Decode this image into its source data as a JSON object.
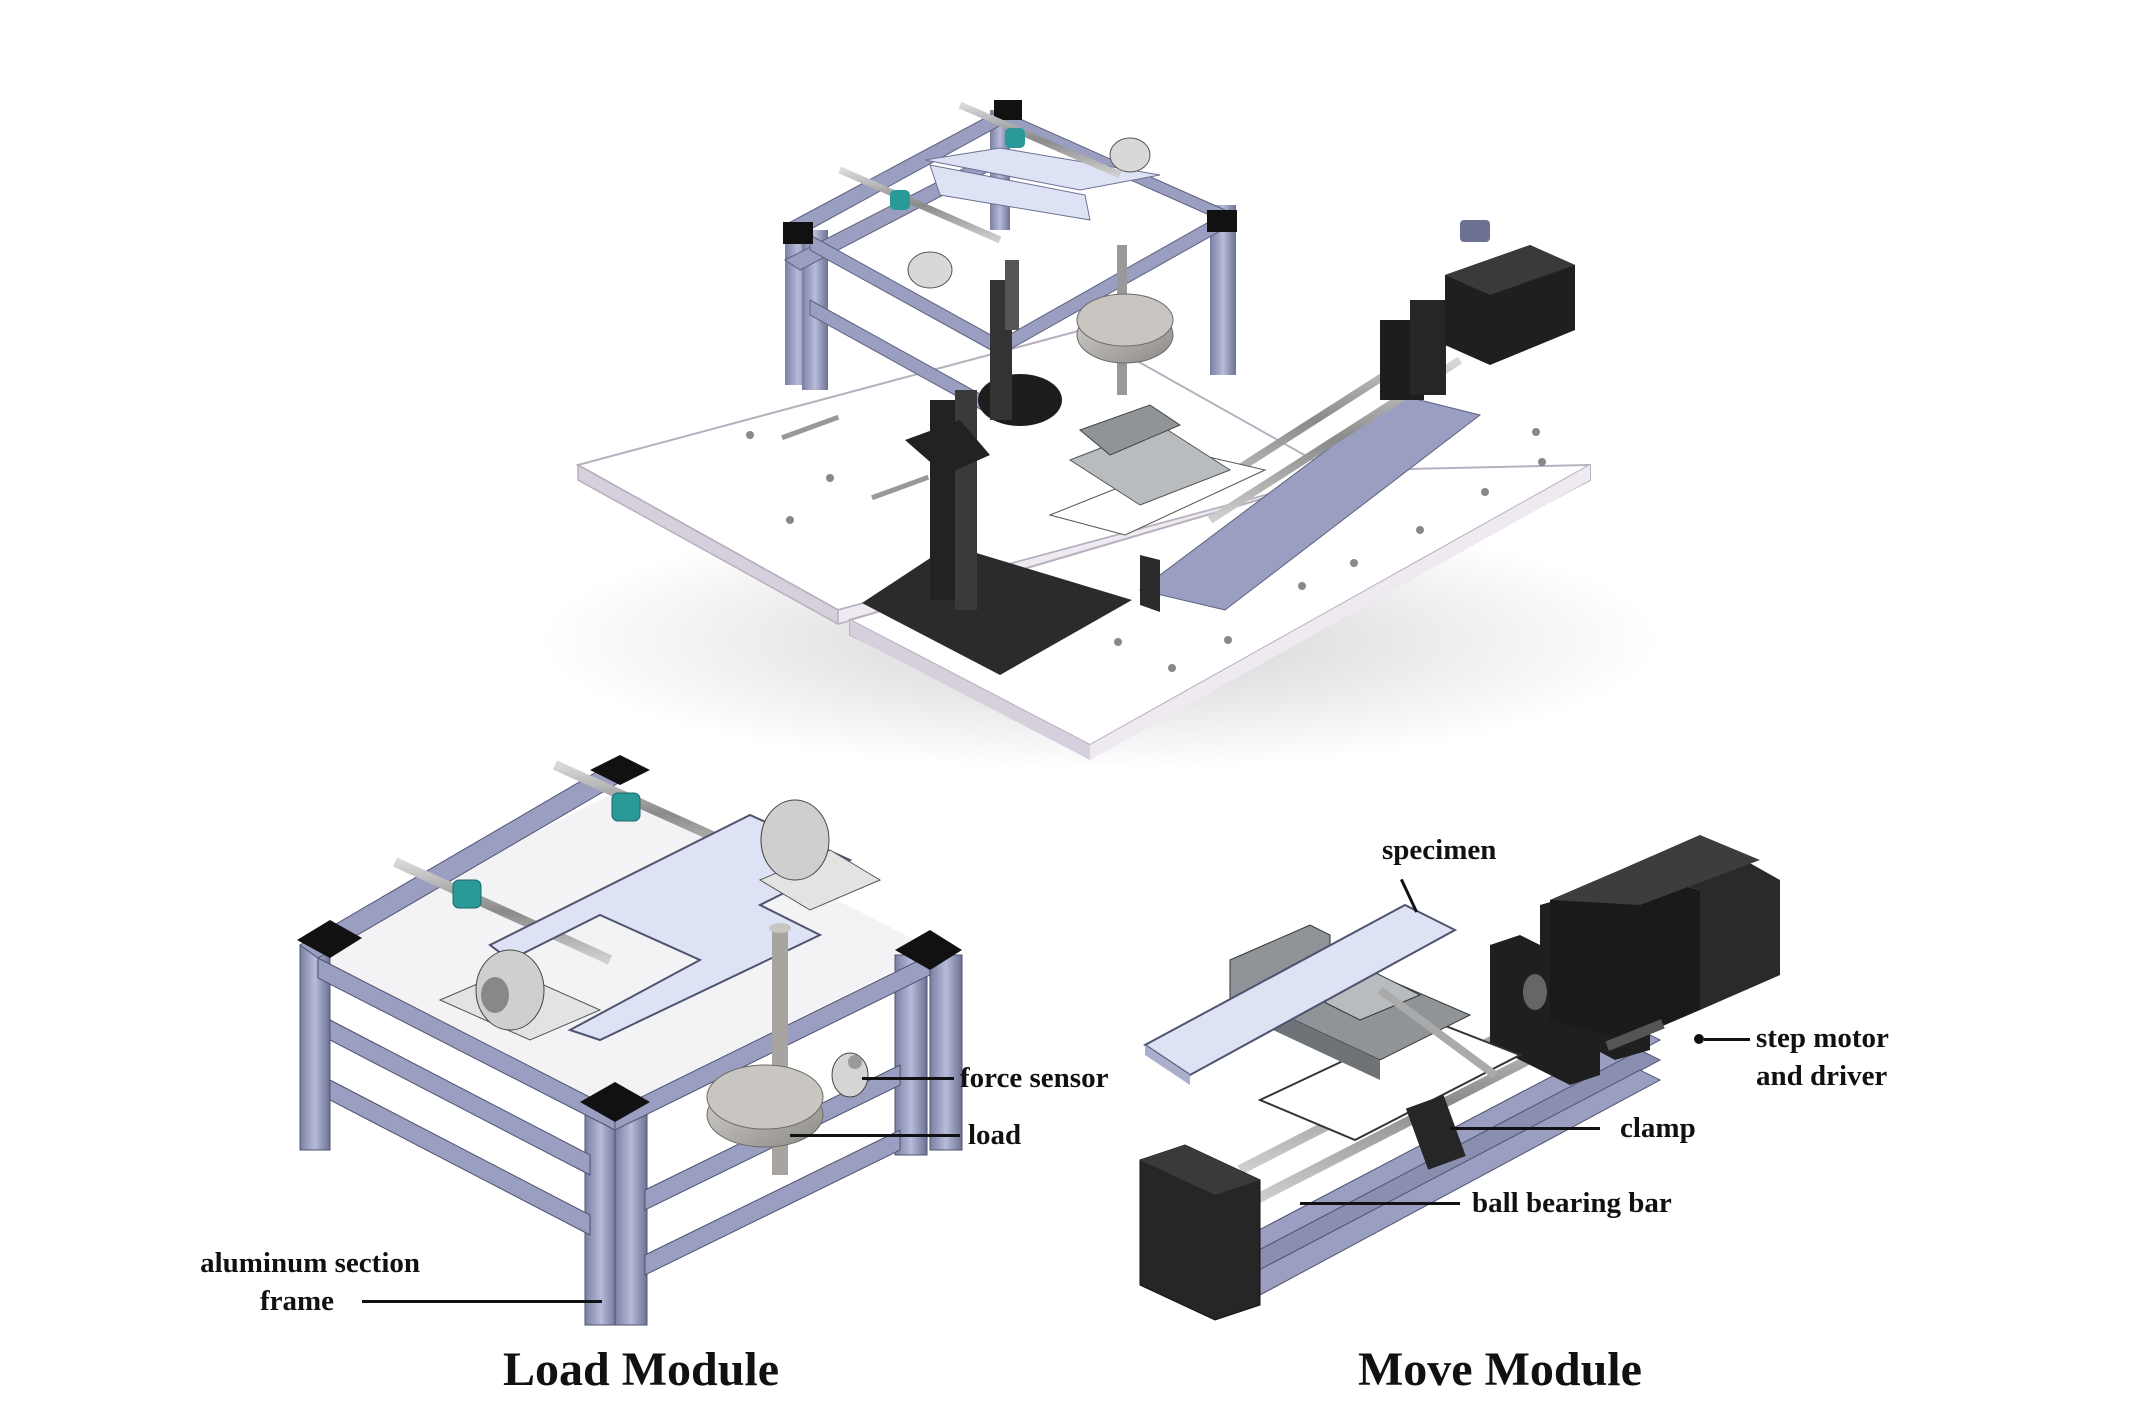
{
  "labels": {
    "force_sensor": "force sensor",
    "load": "load",
    "aluminum_section_frame_line1": "aluminum section",
    "aluminum_section_frame_line2": "frame",
    "specimen": "specimen",
    "step_motor_line1": "step motor",
    "step_motor_line2": "and driver",
    "clamp": "clamp",
    "ball_bearing_bar": "ball bearing bar"
  },
  "titles": {
    "load_module": "Load Module",
    "move_module": "Move Module"
  },
  "colors": {
    "frame_profile": "#9a9fc2",
    "frame_dark": "#6d7194",
    "base_plate": "#ffffff",
    "plate_edge": "#c9bfd0",
    "dark_part": "#2b2b2b",
    "teal_nut": "#2a9a98",
    "slider_plate": "#dde3f5",
    "clamp_gray": "#8f9499",
    "weight_disk": "#b9b7b3"
  }
}
